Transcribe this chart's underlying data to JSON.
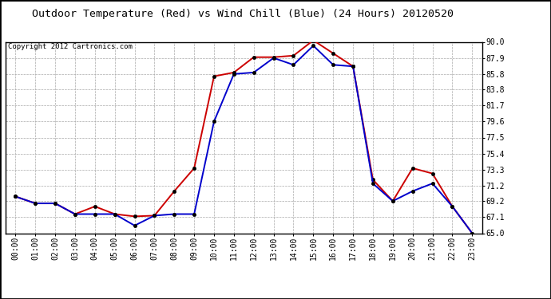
{
  "title": "Outdoor Temperature (Red) vs Wind Chill (Blue) (24 Hours) 20120520",
  "copyright": "Copyright 2012 Cartronics.com",
  "hours": [
    "00:00",
    "01:00",
    "02:00",
    "03:00",
    "04:00",
    "05:00",
    "06:00",
    "07:00",
    "08:00",
    "09:00",
    "10:00",
    "11:00",
    "12:00",
    "13:00",
    "14:00",
    "15:00",
    "16:00",
    "17:00",
    "18:00",
    "19:00",
    "20:00",
    "21:00",
    "22:00",
    "23:00"
  ],
  "temp_red": [
    69.8,
    68.9,
    68.9,
    67.5,
    68.5,
    67.5,
    67.2,
    67.3,
    70.5,
    73.5,
    85.5,
    86.0,
    88.0,
    88.0,
    88.2,
    90.2,
    88.5,
    86.8,
    72.0,
    69.2,
    73.5,
    72.8,
    68.5,
    65.0
  ],
  "wind_blue": [
    69.8,
    68.9,
    68.9,
    67.5,
    67.5,
    67.5,
    66.0,
    67.3,
    67.5,
    67.5,
    79.6,
    85.8,
    86.0,
    87.9,
    87.0,
    89.5,
    87.0,
    86.8,
    71.5,
    69.2,
    70.5,
    71.5,
    68.5,
    65.0
  ],
  "ylim": [
    65.0,
    90.0
  ],
  "yticks": [
    65.0,
    67.1,
    69.2,
    71.2,
    73.3,
    75.4,
    77.5,
    79.6,
    81.7,
    83.8,
    85.8,
    87.9,
    90.0
  ],
  "ytick_labels": [
    "65.0",
    "67.1",
    "69.2",
    "71.2",
    "73.3",
    "75.4",
    "77.5",
    "79.6",
    "81.7",
    "83.8",
    "85.8",
    "87.9",
    "90.0"
  ],
  "red_color": "#cc0000",
  "blue_color": "#0000cc",
  "bg_color": "#ffffff",
  "grid_color": "#aaaaaa",
  "title_fontsize": 9.5,
  "copyright_fontsize": 6.5,
  "tick_fontsize": 7,
  "marker": "o",
  "markersize": 3,
  "linewidth": 1.4
}
